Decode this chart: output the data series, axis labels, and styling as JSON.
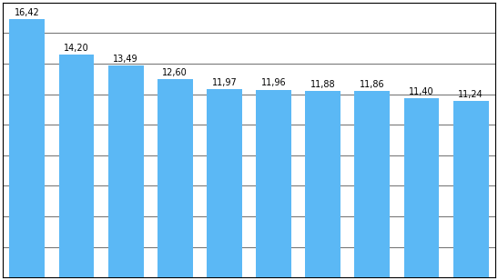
{
  "values": [
    16.42,
    14.2,
    13.49,
    12.6,
    11.97,
    11.96,
    11.88,
    11.86,
    11.4,
    11.24
  ],
  "labels": [
    "16,42",
    "14,20",
    "13,49",
    "12,60",
    "11,97",
    "11,96",
    "11,88",
    "11,86",
    "11,40",
    "11,24"
  ],
  "bar_color": "#5BB8F5",
  "background_color": "#ffffff",
  "ylim": [
    0,
    17.5
  ],
  "n_gridlines": 9,
  "grid_color": "#000000",
  "grid_linewidth": 0.4,
  "label_fontsize": 7.0,
  "label_color": "#000000",
  "border_color": "#000000",
  "bar_width": 0.72,
  "figsize": [
    5.47,
    3.08
  ],
  "dpi": 100
}
